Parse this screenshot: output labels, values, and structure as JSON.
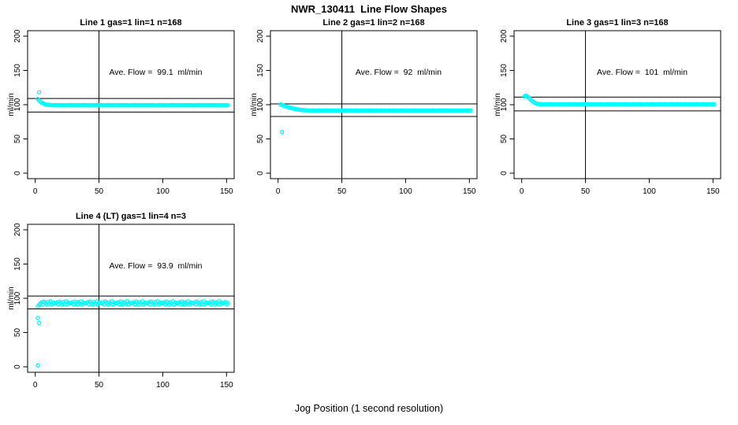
{
  "chart_data": {
    "type": "scatter",
    "title": "NWR_130411  Line Flow Shapes",
    "xlabel": "Jog Position (1 second resolution)",
    "ylabel": "ml/min",
    "xlim": [
      0,
      150
    ],
    "ylim": [
      0,
      200
    ],
    "xticks": [
      0,
      50,
      100,
      150
    ],
    "yticks": [
      0,
      50,
      100,
      150,
      200
    ],
    "grid": false,
    "marker": "open-circle",
    "marker_color": "#00ffff",
    "line_color": "#000000",
    "vline_x": 50,
    "panels": [
      {
        "title": "Line 1 gas=1 lin=1 n=168",
        "ave_label": "Ave. Flow =  99.1  ml/min",
        "ave_flow": 99.1,
        "hlines": [
          109.0,
          89.2
        ],
        "outliers": [
          [
            3,
            118
          ]
        ],
        "series_x_start": 2,
        "series_y": [
          108.2,
          106.1,
          104.4,
          103,
          101.9,
          101.1,
          100.5,
          100.1,
          99.8,
          99.6,
          99.5,
          99.4,
          99.3,
          99.3,
          99.2,
          99.2,
          99.5,
          99,
          99.3,
          99.1,
          99.4,
          99.2,
          98.9,
          99.3,
          99.1,
          99.2,
          99.5,
          99,
          99.3,
          99.1,
          99.4,
          99.2,
          98.9,
          99.3,
          99.1,
          99.2,
          99.5,
          99,
          99.3,
          99.1,
          99.4,
          99.2,
          98.9,
          99.3,
          99.1,
          99.2,
          99.5,
          99,
          99.3,
          99.1,
          99.4,
          99.2,
          98.9,
          99.3,
          99.1,
          99.2,
          99.5,
          99,
          99.3,
          99.1,
          99.4,
          99.2,
          98.9,
          99.3,
          99.1,
          99.2,
          99.5,
          99,
          99.3,
          99.1,
          99.4,
          99.2,
          98.9,
          99.3,
          99.1,
          99.2,
          99.5,
          99,
          99.3,
          99.1,
          99.4,
          99.2,
          98.9,
          99.3,
          99.1,
          99.2,
          99.5,
          99,
          99.3,
          99.1,
          99.4,
          99.2,
          98.9,
          99.3,
          99.1,
          99.2,
          99.5,
          99,
          99.3,
          99.1,
          99.4,
          99.2,
          98.9,
          99.3,
          99.1,
          99.2,
          99.5,
          99,
          99.3,
          99.1,
          99.4,
          99.2,
          98.9,
          99.3,
          99.1,
          99.2,
          99.5,
          99,
          99.3,
          99.1,
          99.4,
          99.2,
          98.9,
          99.3,
          99.1,
          99.2,
          99.5,
          99,
          99.3,
          99.1,
          99.4,
          99.2,
          98.9,
          99.3,
          99.1,
          99.2,
          99.5,
          99,
          99.3,
          99.1,
          99.4,
          99.2,
          98.9,
          99.3,
          99.1,
          99.2,
          99.4,
          99,
          99.3,
          99.1
        ]
      },
      {
        "title": "Line 2 gas=1 lin=2 n=168",
        "ave_label": "Ave. Flow =  92  ml/min",
        "ave_flow": 92,
        "hlines": [
          101.2,
          82.8
        ],
        "outliers": [
          [
            3,
            60
          ]
        ],
        "series_x_start": 2,
        "series_y": [
          100.3,
          99.5,
          98.8,
          98.1,
          97.4,
          96.8,
          96.2,
          95.7,
          95.2,
          94.7,
          94.3,
          93.9,
          93.5,
          93.2,
          92.9,
          92.6,
          92.4,
          92.2,
          92,
          91.8,
          91.7,
          91.6,
          91.5,
          91.4,
          91.4,
          91.6,
          91.2,
          91.5,
          91.3,
          91.6,
          91.4,
          91.1,
          91.5,
          91.3,
          91.4,
          91.6,
          91.2,
          91.5,
          91.3,
          91.6,
          91.4,
          91.1,
          91.5,
          91.3,
          91.4,
          91.6,
          91.2,
          91.5,
          91.3,
          91.6,
          91.4,
          91.1,
          91.5,
          91.3,
          91.4,
          91.6,
          91.2,
          91.5,
          91.3,
          91.6,
          91.4,
          91.1,
          91.5,
          91.3,
          91.4,
          91.6,
          91.2,
          91.5,
          91.3,
          91.6,
          91.4,
          91.1,
          91.5,
          91.3,
          91.4,
          91.6,
          91.2,
          91.5,
          91.3,
          91.6,
          91.4,
          91.1,
          91.5,
          91.3,
          91.4,
          91.6,
          91.2,
          91.5,
          91.3,
          91.6,
          91.4,
          91.1,
          91.5,
          91.3,
          91.4,
          91.6,
          91.2,
          91.5,
          91.3,
          91.6,
          91.4,
          91.1,
          91.5,
          91.3,
          91.4,
          91.6,
          91.2,
          91.5,
          91.3,
          91.6,
          91.4,
          91.1,
          91.5,
          91.3,
          91.4,
          91.6,
          91.2,
          91.5,
          91.3,
          91.6,
          91.4,
          91.1,
          91.5,
          91.3,
          91.4,
          91.6,
          91.2,
          91.5,
          91.3,
          91.6,
          91.4,
          91.1,
          91.5,
          91.3,
          91.4,
          91.6,
          91.2,
          91.5,
          91.3,
          91.6,
          91.4,
          91.1,
          91.5,
          91.3,
          91.4,
          91.6,
          91.2,
          91.5,
          91.3,
          91.6
        ]
      },
      {
        "title": "Line 3 gas=1 lin=3 n=168",
        "ave_label": "Ave. Flow =  101  ml/min",
        "ave_flow": 101,
        "hlines": [
          111.1,
          90.9
        ],
        "outliers": [],
        "series_x_start": 2,
        "series_y": [
          112,
          113,
          112.3,
          111,
          109.2,
          107.3,
          105.5,
          104,
          102.8,
          102,
          101.4,
          101,
          100.8,
          100.7,
          100.6,
          100.6,
          100.9,
          100.4,
          100.7,
          100.5,
          100.8,
          100.6,
          100.3,
          100.7,
          100.5,
          100.6,
          100.9,
          100.4,
          100.7,
          100.5,
          100.8,
          100.6,
          100.3,
          100.7,
          100.5,
          100.6,
          100.9,
          100.4,
          100.7,
          100.5,
          100.8,
          100.6,
          100.3,
          100.7,
          100.5,
          100.6,
          100.9,
          100.4,
          100.7,
          100.5,
          100.8,
          100.6,
          100.3,
          100.7,
          100.5,
          100.6,
          100.9,
          100.4,
          100.7,
          100.5,
          100.8,
          100.6,
          100.3,
          100.7,
          100.5,
          100.6,
          100.9,
          100.4,
          100.7,
          100.5,
          100.8,
          100.6,
          100.3,
          100.7,
          100.5,
          100.6,
          100.9,
          100.4,
          100.7,
          100.5,
          100.8,
          100.6,
          100.3,
          100.7,
          100.5,
          100.6,
          100.9,
          100.4,
          100.7,
          100.5,
          100.8,
          100.6,
          100.3,
          100.7,
          100.5,
          100.6,
          100.9,
          100.4,
          100.7,
          100.5,
          100.8,
          100.6,
          100.3,
          100.7,
          100.5,
          100.6,
          100.9,
          100.4,
          100.7,
          100.5,
          100.8,
          100.6,
          100.3,
          100.7,
          100.5,
          100.6,
          100.9,
          100.4,
          100.7,
          100.5,
          100.8,
          100.6,
          100.3,
          100.7,
          100.5,
          100.6,
          100.9,
          100.4,
          100.7,
          100.5,
          100.8,
          100.6,
          100.3,
          100.7,
          100.5,
          100.6,
          100.9,
          100.4,
          100.7,
          100.5,
          100.8,
          100.6,
          100.3,
          100.7,
          100.5,
          100.6,
          100.8,
          100.4,
          100.7,
          100.5
        ]
      },
      {
        "title": "Line 4 (LT) gas=1 lin=4 n=3",
        "ave_label": "Ave. Flow =  93.9  ml/min",
        "ave_flow": 93.9,
        "hlines": [
          103.3,
          84.5
        ],
        "outliers": [
          [
            2,
            71
          ],
          [
            3,
            64
          ],
          [
            2,
            2
          ]
        ],
        "series_x_start": 2,
        "series_y": [
          88,
          90.5,
          92.5,
          94.2,
          91.3,
          95.1,
          93,
          90.8,
          94.4,
          92.1,
          95.6,
          91.2,
          93.6,
          92.8,
          92.5,
          94.2,
          91.3,
          95.1,
          93,
          90.8,
          94.4,
          92.1,
          95.6,
          91.2,
          93.6,
          92.8,
          92.5,
          94.2,
          91.3,
          95.1,
          93,
          90.8,
          94.4,
          92.1,
          95.6,
          91.2,
          93.6,
          92.8,
          92.5,
          94.2,
          91.3,
          95.1,
          93,
          90.8,
          94.4,
          92.1,
          95.6,
          91.2,
          93.6,
          92.8,
          92.5,
          94.2,
          91.3,
          95.1,
          93,
          90.8,
          94.4,
          92.1,
          95.6,
          91.2,
          93.6,
          92.8,
          92.5,
          94.2,
          91.3,
          95.1,
          93,
          90.8,
          94.4,
          92.1,
          95.6,
          91.2,
          93.6,
          92.8,
          92.5,
          94.2,
          91.3,
          95.1,
          93,
          90.8,
          94.4,
          92.1,
          95.6,
          91.2,
          93.6,
          92.8,
          92.5,
          94.2,
          91.3,
          95.1,
          93,
          90.8,
          94.4,
          92.1,
          95.6,
          91.2,
          93.6,
          92.8,
          92.5,
          94.2,
          91.3,
          95.1,
          93,
          90.8,
          94.4,
          92.1,
          95.6,
          91.2,
          93.6,
          92.8,
          92.5,
          94.2,
          91.3,
          95.1,
          93,
          90.8,
          94.4,
          92.1,
          95.6,
          91.2,
          93.6,
          92.8,
          92.5,
          94.2,
          91.3,
          95.1,
          93,
          90.8,
          94.4,
          92.1,
          95.6,
          91.2,
          93.6,
          92.8,
          92.5,
          94.2,
          91.3,
          95.1,
          93,
          90.8,
          94.4,
          92.1,
          95.6,
          91.2,
          93.6,
          92.8,
          93,
          94.5,
          91.5,
          93.2
        ]
      }
    ]
  }
}
